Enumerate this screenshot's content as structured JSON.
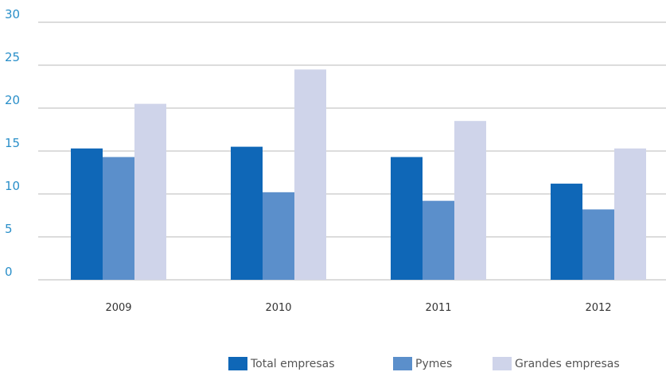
{
  "chart_data": {
    "type": "bar",
    "categories": [
      "2009",
      "2010",
      "2011",
      "2012"
    ],
    "series": [
      {
        "name": "Total empresas",
        "values": [
          15.3,
          15.5,
          14.3,
          11.2
        ]
      },
      {
        "name": "Pymes",
        "values": [
          14.3,
          10.2,
          9.2,
          8.2
        ]
      },
      {
        "name": "Grandes empresas",
        "values": [
          20.5,
          24.5,
          18.5,
          15.3
        ]
      }
    ],
    "yticks": [
      "0",
      "5",
      "10",
      "15",
      "20",
      "25",
      "30"
    ],
    "ylim": [
      0,
      30
    ],
    "grid": true,
    "legend_position": "bottom-right",
    "colors": [
      "#0f67b7",
      "#5b8fcb",
      "#cfd4ea"
    ]
  }
}
